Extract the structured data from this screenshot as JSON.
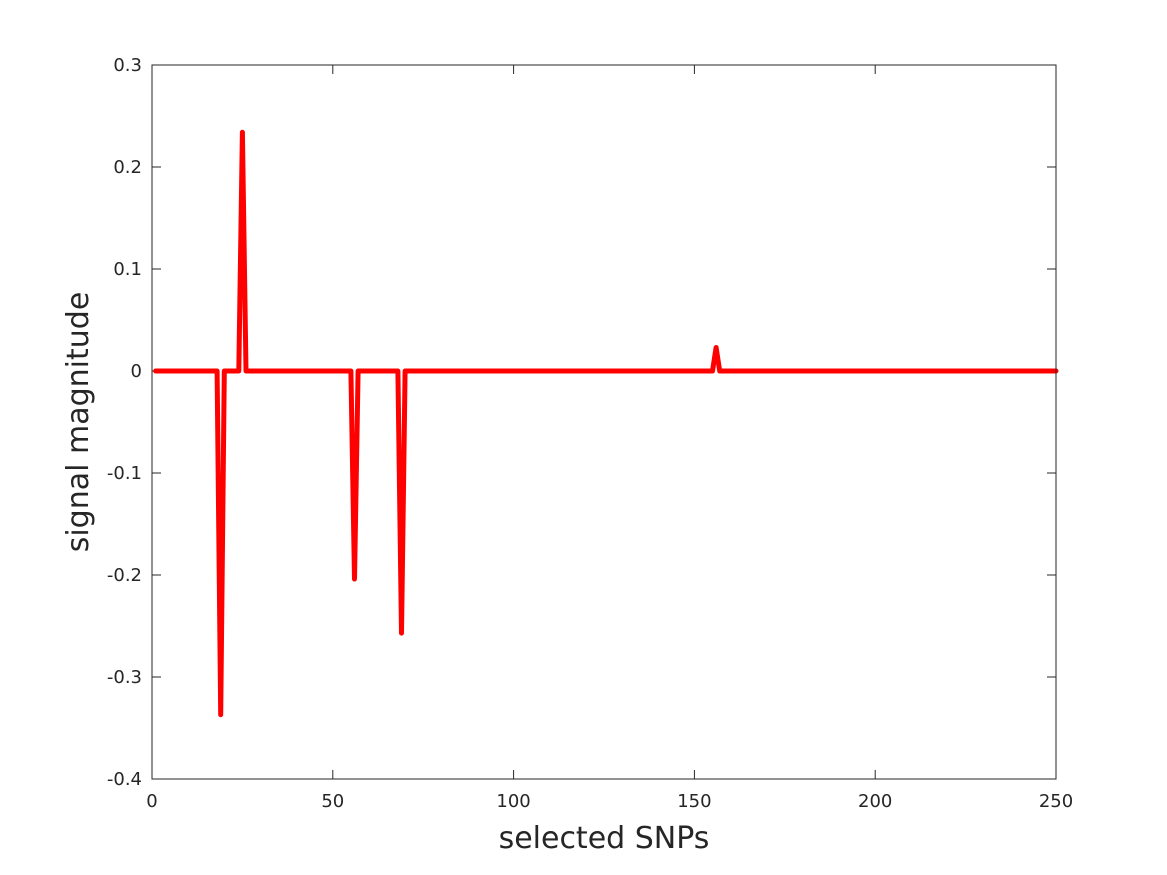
{
  "chart_data": {
    "type": "line",
    "xlabel": "selected SNPs",
    "ylabel": "signal magnitude",
    "xlim": [
      0,
      250
    ],
    "ylim": [
      -0.4,
      0.3
    ],
    "xticks": [
      0,
      50,
      100,
      150,
      200,
      250
    ],
    "xtick_labels": [
      "0",
      "50",
      "100",
      "150",
      "200",
      "250"
    ],
    "yticks": [
      -0.4,
      -0.3,
      -0.2,
      -0.1,
      0,
      0.1,
      0.2,
      0.3
    ],
    "ytick_labels": [
      "-0.4",
      "-0.3",
      "-0.2",
      "-0.1",
      "0",
      "0.1",
      "0.2",
      "0.3"
    ],
    "grid": false,
    "series": [
      {
        "color": "#ff0000",
        "x": [
          1,
          18,
          19,
          20,
          24,
          25,
          26,
          55,
          56,
          57,
          68,
          69,
          70,
          155,
          156,
          157,
          250
        ],
        "y": [
          0,
          0,
          -0.337,
          0,
          0,
          0.234,
          0,
          0,
          -0.204,
          0,
          0,
          -0.257,
          0,
          0,
          0.023,
          0,
          0
        ]
      }
    ]
  }
}
